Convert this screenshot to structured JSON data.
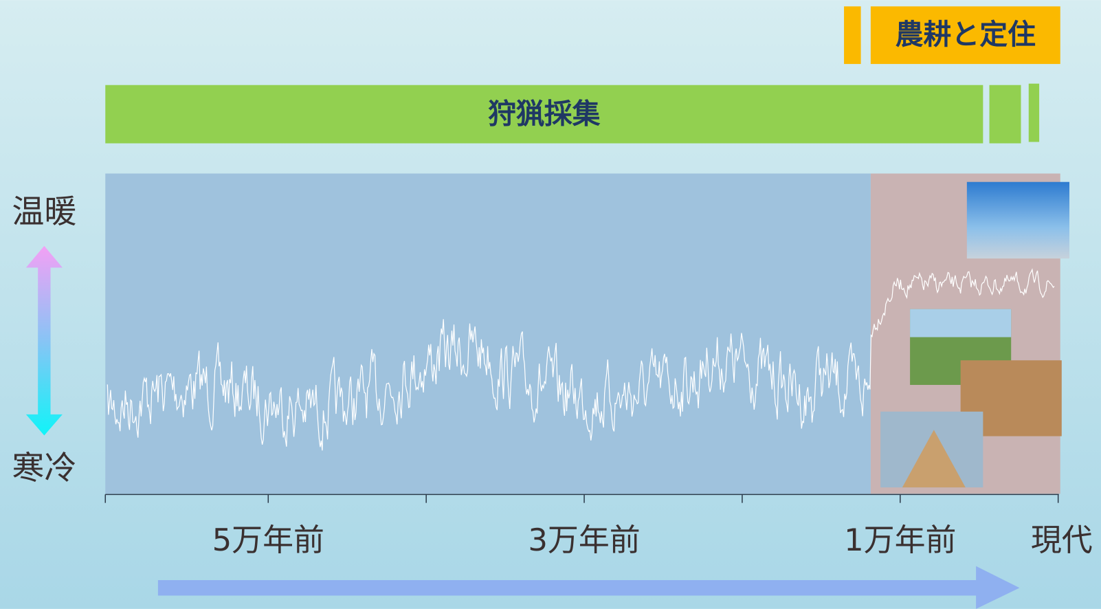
{
  "bands": {
    "agriculture": "農耕と定住",
    "hunting": "狩猟採集"
  },
  "climate": {
    "warm": "温暖",
    "cold": "寒冷"
  },
  "timeline": {
    "labels": [
      "5万年前",
      "3万年前",
      "1万年前",
      "現代"
    ]
  }
}
